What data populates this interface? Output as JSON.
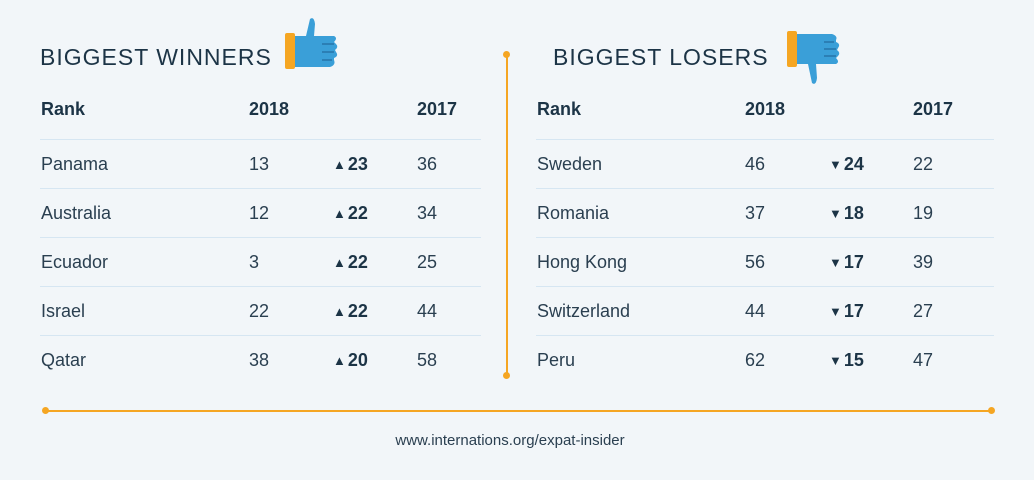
{
  "footer": "www.internations.org/expat-insider",
  "colors": {
    "accent": "#f5a623",
    "icon_blue": "#3a9fd8",
    "text": "#1c3446",
    "row_line": "#d6e6f2"
  },
  "chart_data": [
    {
      "type": "table",
      "title": "BIGGEST WINNERS",
      "icon": "thumbs-up-icon",
      "columns": [
        "Rank",
        "2018",
        "",
        "2017"
      ],
      "rows": [
        {
          "country": "Panama",
          "y2018": "13",
          "change": "23",
          "direction": "up",
          "y2017": "36"
        },
        {
          "country": "Australia",
          "y2018": "12",
          "change": "22",
          "direction": "up",
          "y2017": "34"
        },
        {
          "country": "Ecuador",
          "y2018": "3",
          "change": "22",
          "direction": "up",
          "y2017": "25"
        },
        {
          "country": "Israel",
          "y2018": "22",
          "change": "22",
          "direction": "up",
          "y2017": "44"
        },
        {
          "country": "Qatar",
          "y2018": "38",
          "change": "20",
          "direction": "up",
          "y2017": "58"
        }
      ]
    },
    {
      "type": "table",
      "title": "BIGGEST LOSERS",
      "icon": "thumbs-down-icon",
      "columns": [
        "Rank",
        "2018",
        "",
        "2017"
      ],
      "rows": [
        {
          "country": "Sweden",
          "y2018": "46",
          "change": "24",
          "direction": "down",
          "y2017": "22"
        },
        {
          "country": "Romania",
          "y2018": "37",
          "change": "18",
          "direction": "down",
          "y2017": "19"
        },
        {
          "country": "Hong Kong",
          "y2018": "56",
          "change": "17",
          "direction": "down",
          "y2017": "39"
        },
        {
          "country": "Switzerland",
          "y2018": "44",
          "change": "17",
          "direction": "down",
          "y2017": "27"
        },
        {
          "country": "Peru",
          "y2018": "62",
          "change": "15",
          "direction": "down",
          "y2017": "47"
        }
      ]
    }
  ]
}
